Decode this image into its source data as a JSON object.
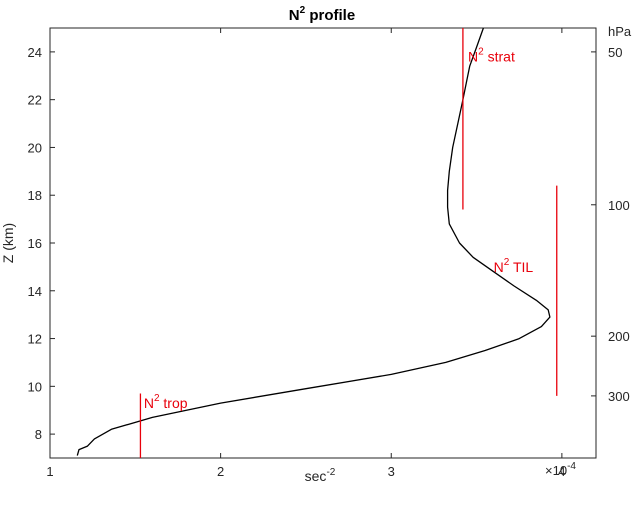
{
  "chart_data": {
    "type": "line",
    "title": "N",
    "title_sup": "2",
    "title_rest": " profile",
    "xlabel": "sec",
    "xlabel_sup": "-2",
    "ylabel": "Z (km)",
    "xlim": [
      1.0,
      4.2
    ],
    "ylim": [
      7.0,
      25.0
    ],
    "x_ticks": [
      1,
      2,
      3,
      4
    ],
    "x_tick_labels": [
      "1",
      "2",
      "3",
      "4"
    ],
    "x_multiplier_base": "×10",
    "x_multiplier_exp": "-4",
    "y_ticks": [
      8,
      10,
      12,
      14,
      16,
      18,
      20,
      22,
      24
    ],
    "y_tick_labels": [
      "8",
      "10",
      "12",
      "14",
      "16",
      "18",
      "20",
      "22",
      "24"
    ],
    "right_axis": {
      "label": "hPa",
      "ticks": [
        {
          "z": 24.0,
          "label": "50"
        },
        {
          "z": 17.6,
          "label": "100"
        },
        {
          "z": 12.1,
          "label": "200"
        },
        {
          "z": 9.6,
          "label": "300"
        }
      ]
    },
    "grid": false,
    "series": [
      {
        "color": "#000000",
        "x": [
          1.16,
          1.17,
          1.22,
          1.26,
          1.36,
          1.6,
          2.0,
          2.5,
          3.0,
          3.32,
          3.55,
          3.75,
          3.88,
          3.93,
          3.92,
          3.85,
          3.72,
          3.6,
          3.48,
          3.4,
          3.34,
          3.33,
          3.33,
          3.34,
          3.36,
          3.39,
          3.42,
          3.44,
          3.46,
          3.5,
          3.54
        ],
        "y": [
          7.1,
          7.35,
          7.5,
          7.8,
          8.2,
          8.7,
          9.3,
          9.9,
          10.5,
          11.0,
          11.5,
          12.0,
          12.5,
          12.9,
          13.2,
          13.6,
          14.2,
          14.8,
          15.4,
          16.0,
          16.8,
          17.5,
          18.2,
          19.0,
          20.0,
          21.0,
          22.0,
          22.7,
          23.4,
          24.2,
          25.0
        ]
      }
    ],
    "reference_lines": [
      {
        "label": "N",
        "label_sup": "2",
        "label_rest": " strat",
        "x": 3.42,
        "y0": 17.4,
        "y1": 25.0,
        "color": "#e8000b",
        "label_x": 3.45,
        "label_y": 23.8
      },
      {
        "label": "N",
        "label_sup": "2",
        "label_rest": " TIL",
        "x": 3.97,
        "y0": 9.6,
        "y1": 18.4,
        "color": "#e8000b",
        "label_x": 3.6,
        "label_y": 15.0
      },
      {
        "label": "N",
        "label_sup": "2",
        "label_rest": " trop",
        "x": 1.53,
        "y0": 7.0,
        "y1": 9.7,
        "color": "#e8000b",
        "label_x": 1.55,
        "label_y": 9.3
      }
    ]
  }
}
